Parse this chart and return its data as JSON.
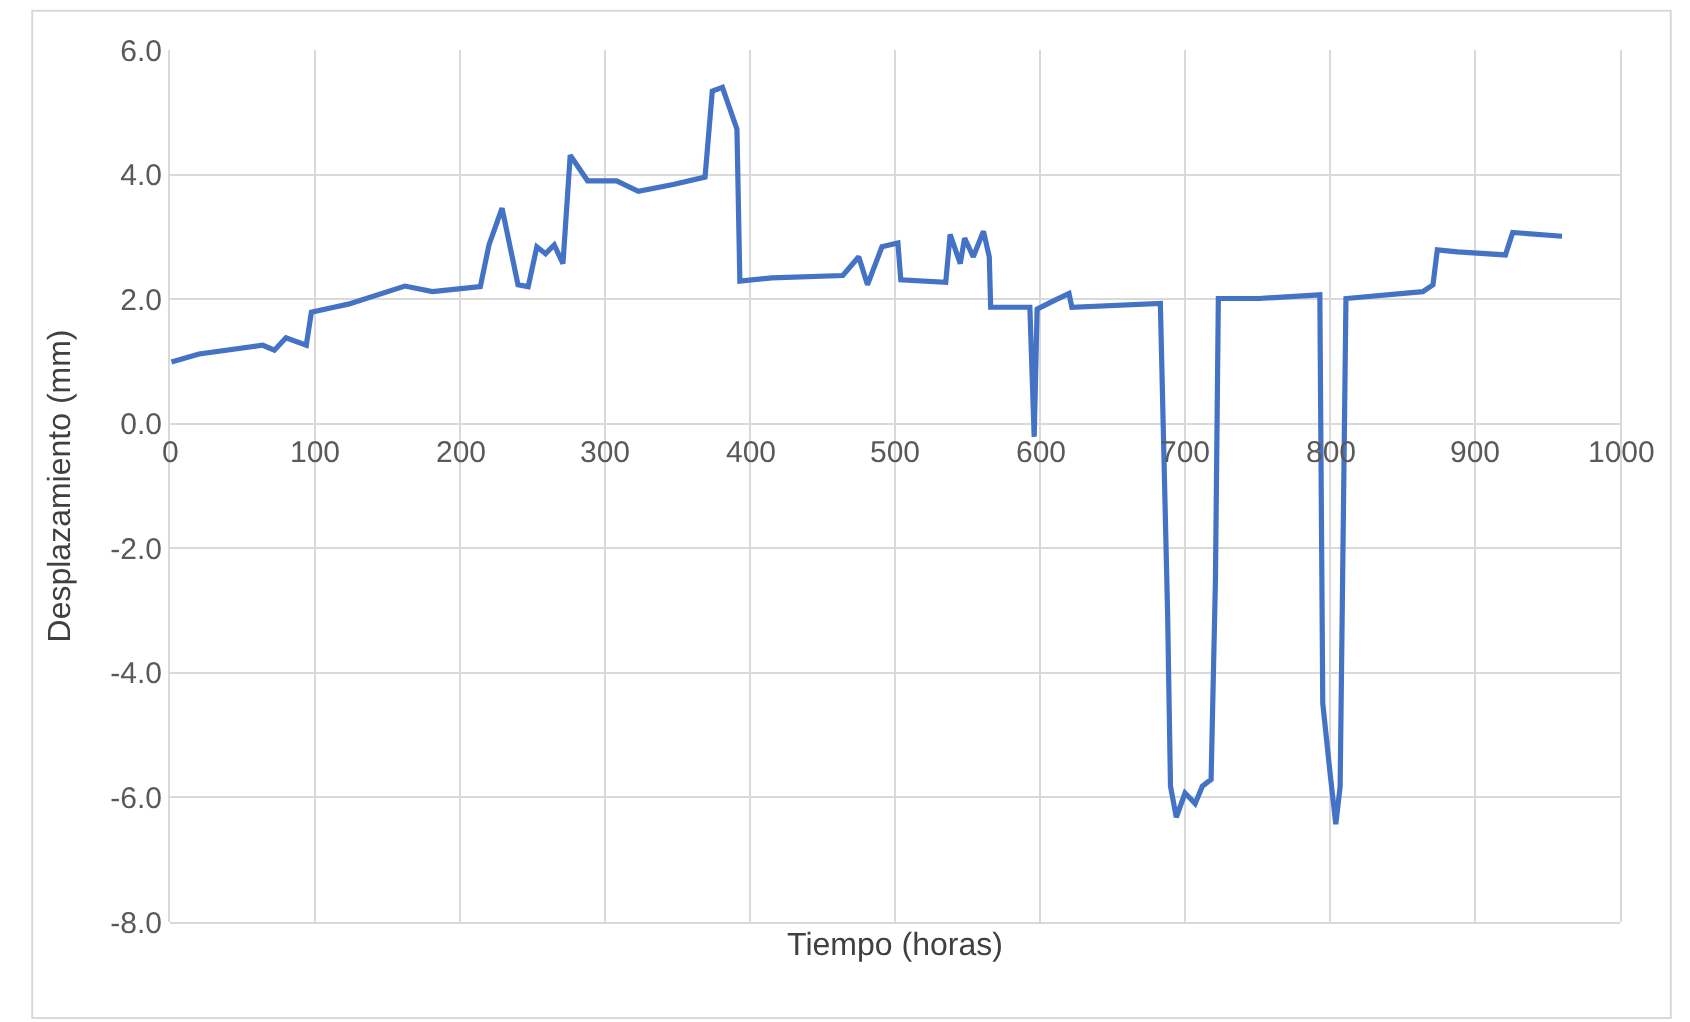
{
  "chart_data": {
    "type": "line",
    "xlabel": "Tiempo (horas)",
    "ylabel": "Desplazamiento (mm)",
    "xlim": [
      0,
      1000
    ],
    "xticks": [
      0,
      100,
      200,
      300,
      400,
      500,
      600,
      700,
      800,
      900,
      1000
    ],
    "ylim": [
      -8,
      6
    ],
    "yticks": [
      {
        "value": -8,
        "label": "-8.0"
      },
      {
        "value": -6,
        "label": "-6.0"
      },
      {
        "value": -4,
        "label": "-4.0"
      },
      {
        "value": -2,
        "label": "-2.0"
      },
      {
        "value": 0,
        "label": "0.0"
      },
      {
        "value": 2,
        "label": "2.0"
      },
      {
        "value": 4,
        "label": "4.0"
      },
      {
        "value": 6,
        "label": "6.0"
      }
    ],
    "grid": true,
    "marker": "none",
    "line_style": "solid",
    "series": [
      {
        "color": "#4472c4",
        "x": [
          1,
          20,
          64,
          72,
          80,
          94,
          97.5,
          113,
          123,
          162,
          181,
          214,
          220,
          229,
          240,
          247,
          253,
          259,
          265,
          271,
          276,
          288,
          308,
          323,
          347,
          369,
          374,
          381,
          391,
          393,
          415,
          464,
          475,
          481,
          491,
          502,
          504,
          535,
          538,
          545,
          548,
          554,
          561,
          565,
          566,
          593,
          596,
          598,
          610,
          620,
          622,
          683,
          688,
          690,
          694,
          700,
          707,
          712,
          718,
          721,
          723,
          751,
          793,
          795,
          800,
          804,
          807,
          811,
          864,
          871,
          874,
          888,
          921,
          926,
          960
        ],
        "values": [
          0.99,
          1.12,
          1.26,
          1.18,
          1.38,
          1.26,
          1.79,
          1.87,
          1.92,
          2.21,
          2.12,
          2.2,
          2.87,
          3.46,
          2.23,
          2.2,
          2.84,
          2.73,
          2.87,
          2.57,
          4.31,
          3.9,
          3.9,
          3.73,
          3.84,
          3.96,
          5.34,
          5.4,
          4.73,
          2.29,
          2.34,
          2.38,
          2.68,
          2.23,
          2.84,
          2.9,
          2.31,
          2.27,
          3.04,
          2.57,
          2.98,
          2.68,
          3.09,
          2.68,
          1.87,
          1.87,
          -0.21,
          1.84,
          1.98,
          2.09,
          1.87,
          1.93,
          -3.04,
          -5.82,
          -6.32,
          -5.93,
          -6.1,
          -5.82,
          -5.71,
          -2.49,
          2.01,
          2.01,
          2.07,
          -4.49,
          -5.6,
          -6.43,
          -5.82,
          2.01,
          2.12,
          2.23,
          2.79,
          2.76,
          2.71,
          3.07,
          3.01
        ]
      }
    ]
  }
}
